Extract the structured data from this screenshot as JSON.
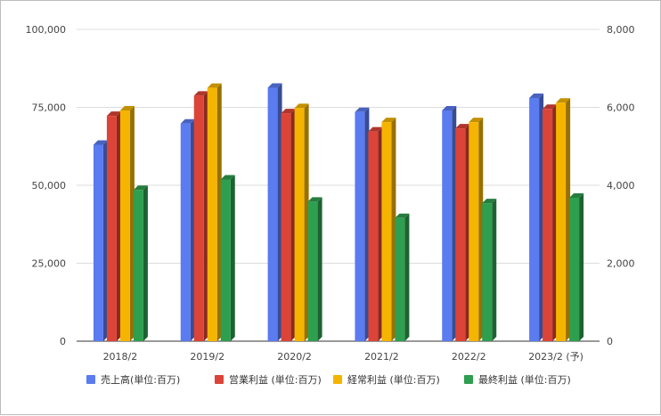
{
  "chart_data": {
    "type": "bar",
    "categories": [
      "2018/2",
      "2019/2",
      "2020/2",
      "2021/2",
      "2022/2",
      "2023/2 (予)"
    ],
    "series": [
      {
        "name": "売上高(単位:百万)",
        "axis": "left",
        "color": "#5b7bf0",
        "values": [
          63000,
          69800,
          81300,
          73500,
          74000,
          78000
        ]
      },
      {
        "name": "営業利益 (単位:百万)",
        "axis": "right",
        "color": "#db4437",
        "values": [
          5780,
          6300,
          5850,
          5380,
          5460,
          5960
        ]
      },
      {
        "name": "経常利益 (単位:百万)",
        "axis": "right",
        "color": "#f4b400",
        "values": [
          5920,
          6500,
          5980,
          5620,
          5620,
          6120
        ]
      },
      {
        "name": "最終利益 (単位:百万)",
        "axis": "right",
        "color": "#2e9e4f",
        "values": [
          3880,
          4150,
          3580,
          3160,
          3540,
          3680
        ]
      }
    ],
    "left_axis": {
      "ylim": [
        0,
        100000
      ],
      "ticks": [
        "0",
        "25,000",
        "50,000",
        "75,000",
        "100,000"
      ]
    },
    "right_axis": {
      "ylim": [
        0,
        8000
      ],
      "ticks": [
        "0",
        "2,000",
        "4,000",
        "6,000",
        "8,000"
      ]
    },
    "grid": true,
    "legend_position": "bottom"
  }
}
